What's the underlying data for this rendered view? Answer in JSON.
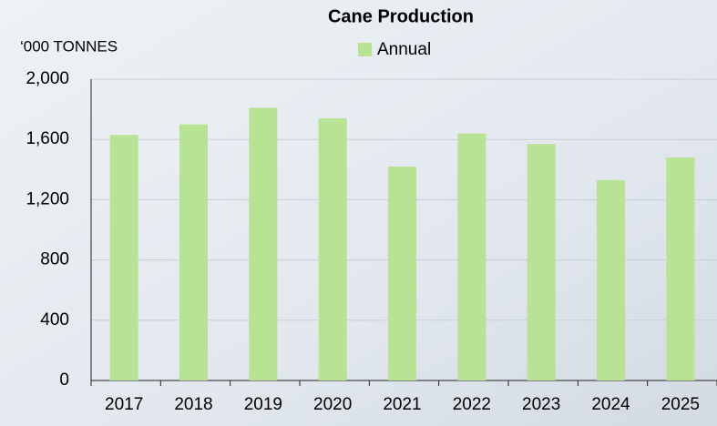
{
  "chart_data": {
    "type": "bar",
    "title": "Cane Production",
    "y_label": "‘000 TONNES",
    "categories": [
      "2017",
      "2018",
      "2019",
      "2020",
      "2021",
      "2022",
      "2023",
      "2024",
      "2025"
    ],
    "series": [
      {
        "name": "Annual",
        "color": "#b8e294",
        "values": [
          1630,
          1700,
          1810,
          1740,
          1420,
          1640,
          1570,
          1330,
          1480
        ]
      }
    ],
    "ylim": [
      0,
      2000
    ],
    "yticks": [
      0,
      400,
      800,
      {
        "value": 1200,
        "label": "1,200"
      },
      {
        "value": 1600,
        "label": "1,600"
      },
      {
        "value": 2000,
        "label": "2,000"
      }
    ],
    "grid": true
  }
}
